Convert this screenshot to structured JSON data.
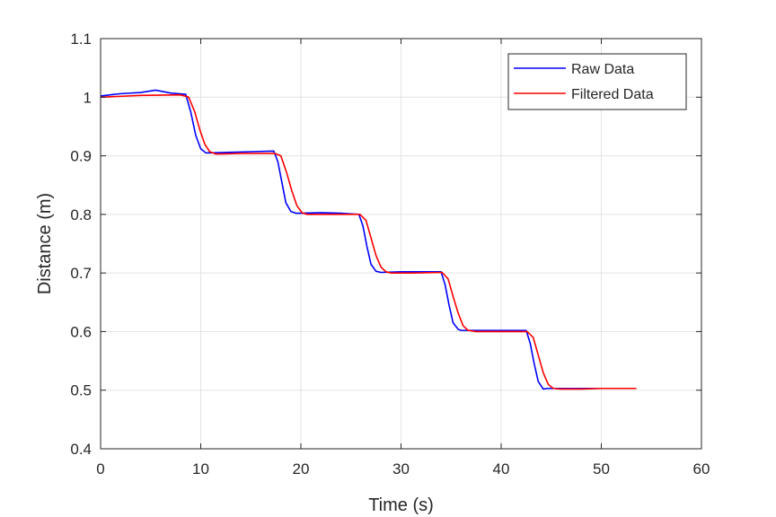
{
  "chart_data": {
    "type": "line",
    "xlabel": "Time (s)",
    "ylabel": "Distance (m)",
    "xlim": [
      0,
      60
    ],
    "ylim": [
      0.4,
      1.1
    ],
    "xticks": [
      "0",
      "10",
      "20",
      "30",
      "40",
      "50",
      "60"
    ],
    "yticks": [
      "0.4",
      "0.5",
      "0.6",
      "0.7",
      "0.8",
      "0.9",
      "1",
      "1.1"
    ],
    "grid": true,
    "legend_position": "top-right",
    "series": [
      {
        "name": "Raw Data",
        "color": "#0000ff",
        "x": [
          0,
          2,
          4,
          5.5,
          7,
          8.5,
          9.0,
          9.5,
          10.0,
          10.5,
          11,
          13,
          15,
          17.3,
          17.7,
          18.1,
          18.5,
          19.0,
          19.5,
          20,
          22,
          24,
          25.8,
          26.2,
          26.6,
          27.0,
          27.5,
          28,
          30,
          32,
          34.0,
          34.4,
          34.8,
          35.2,
          35.7,
          36,
          38,
          40,
          42.5,
          42.9,
          43.3,
          43.7,
          44.2,
          44.6,
          46,
          48,
          50,
          52,
          53.5
        ],
        "y": [
          1.002,
          1.006,
          1.008,
          1.012,
          1.007,
          1.005,
          0.975,
          0.935,
          0.912,
          0.905,
          0.905,
          0.906,
          0.907,
          0.908,
          0.89,
          0.855,
          0.82,
          0.805,
          0.802,
          0.802,
          0.803,
          0.802,
          0.8,
          0.78,
          0.745,
          0.715,
          0.703,
          0.701,
          0.702,
          0.702,
          0.702,
          0.68,
          0.645,
          0.615,
          0.604,
          0.602,
          0.602,
          0.602,
          0.602,
          0.58,
          0.545,
          0.515,
          0.502,
          0.503,
          0.503,
          0.503,
          0.503,
          0.503,
          0.503
        ]
      },
      {
        "name": "Filtered Data",
        "color": "#ff0000",
        "x": [
          0,
          4,
          8,
          8.8,
          9.4,
          9.9,
          10.4,
          10.9,
          11.5,
          12,
          14,
          17.4,
          18.0,
          18.6,
          19.1,
          19.6,
          20.1,
          20.6,
          22,
          25.9,
          26.5,
          27.0,
          27.5,
          28.0,
          28.5,
          29,
          31,
          34.1,
          34.7,
          35.2,
          35.7,
          36.2,
          36.7,
          37.5,
          40,
          42.6,
          43.2,
          43.7,
          44.2,
          44.7,
          45.2,
          46,
          48,
          50,
          53.5
        ],
        "y": [
          1.0,
          1.003,
          1.004,
          1.0,
          0.975,
          0.945,
          0.92,
          0.907,
          0.903,
          0.903,
          0.904,
          0.904,
          0.9,
          0.87,
          0.84,
          0.815,
          0.803,
          0.8,
          0.8,
          0.8,
          0.79,
          0.76,
          0.73,
          0.71,
          0.702,
          0.7,
          0.7,
          0.701,
          0.69,
          0.66,
          0.632,
          0.61,
          0.602,
          0.6,
          0.6,
          0.6,
          0.59,
          0.56,
          0.53,
          0.51,
          0.503,
          0.502,
          0.502,
          0.503,
          0.503
        ]
      }
    ]
  }
}
